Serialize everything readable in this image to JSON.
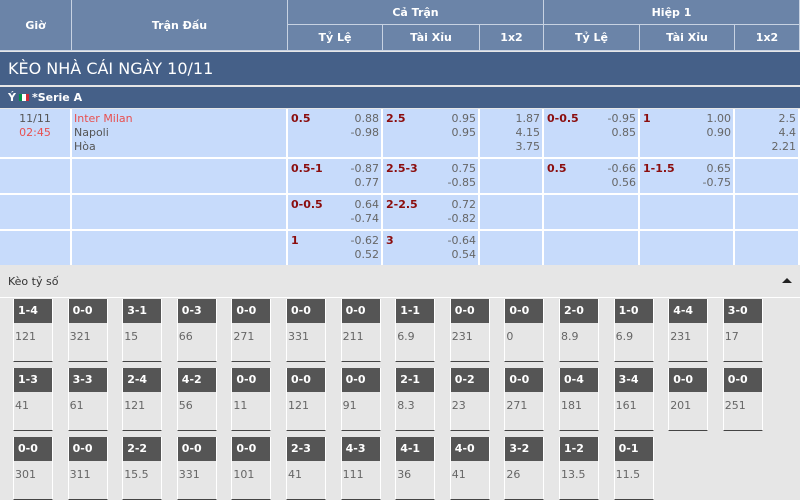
{
  "header": {
    "time": "Giờ",
    "match": "Trận Đấu",
    "full_match": "Cả Trận",
    "first_half": "Hiệp 1",
    "handicap": "Tỷ Lệ",
    "over_under": "Tài Xỉu",
    "one_x_two": "1x2"
  },
  "title": "KÈO NHÀ CÁI NGÀY 10/11",
  "league": {
    "country": "Ý",
    "name": "*Serie A",
    "flag_colors": [
      "#009246",
      "#ffffff",
      "#ce2b37"
    ]
  },
  "match": {
    "date": "11/11",
    "time": "02:45",
    "home": "Inter Milan",
    "away": "Napoli",
    "draw": "Hòa"
  },
  "rows": [
    {
      "ft_hdp": {
        "line": "0.5",
        "o1": "0.88",
        "o2": "-0.98"
      },
      "ft_ou": {
        "line": "2.5",
        "o1": "0.95",
        "o2": "0.95"
      },
      "ft_1x2": [
        "1.87",
        "4.15",
        "3.75"
      ],
      "h1_hdp": {
        "line": "0-0.5",
        "o1": "-0.95",
        "o2": "0.85"
      },
      "h1_ou": {
        "line": "1",
        "o1": "1.00",
        "o2": "0.90"
      },
      "h1_1x2": [
        "2.5",
        "4.4",
        "2.21"
      ]
    },
    {
      "ft_hdp": {
        "line": "0.5-1",
        "o1": "-0.87",
        "o2": "0.77"
      },
      "ft_ou": {
        "line": "2.5-3",
        "o1": "0.75",
        "o2": "-0.85"
      },
      "h1_hdp": {
        "line": "0.5",
        "o1": "-0.66",
        "o2": "0.56"
      },
      "h1_ou": {
        "line": "1-1.5",
        "o1": "0.65",
        "o2": "-0.75"
      }
    },
    {
      "ft_hdp": {
        "line": "0-0.5",
        "o1": "0.64",
        "o2": "-0.74"
      },
      "ft_ou": {
        "line": "2-2.5",
        "o1": "0.72",
        "o2": "-0.82"
      }
    },
    {
      "ft_hdp": {
        "line": "1",
        "o1": "-0.62",
        "o2": "0.52"
      },
      "ft_ou": {
        "line": "3",
        "o1": "-0.64",
        "o2": "0.54"
      }
    }
  ],
  "correct_score": {
    "label": "Kèo tỷ số",
    "items": [
      {
        "s": "1-4",
        "p": "121"
      },
      {
        "s": "0-0",
        "p": "321"
      },
      {
        "s": "3-1",
        "p": "15"
      },
      {
        "s": "0-3",
        "p": "66"
      },
      {
        "s": "0-0",
        "p": "271"
      },
      {
        "s": "0-0",
        "p": "331"
      },
      {
        "s": "0-0",
        "p": "211"
      },
      {
        "s": "1-1",
        "p": "6.9"
      },
      {
        "s": "0-0",
        "p": "231"
      },
      {
        "s": "0-0",
        "p": "0"
      },
      {
        "s": "2-0",
        "p": "8.9"
      },
      {
        "s": "1-0",
        "p": "6.9"
      },
      {
        "s": "4-4",
        "p": "231"
      },
      {
        "s": "3-0",
        "p": "17"
      },
      {
        "s": "1-3",
        "p": "41"
      },
      {
        "s": "3-3",
        "p": "61"
      },
      {
        "s": "2-4",
        "p": "121"
      },
      {
        "s": "4-2",
        "p": "56"
      },
      {
        "s": "0-0",
        "p": "11"
      },
      {
        "s": "0-0",
        "p": "121"
      },
      {
        "s": "0-0",
        "p": "91"
      },
      {
        "s": "2-1",
        "p": "8.3"
      },
      {
        "s": "0-2",
        "p": "23"
      },
      {
        "s": "0-0",
        "p": "271"
      },
      {
        "s": "0-4",
        "p": "181"
      },
      {
        "s": "3-4",
        "p": "161"
      },
      {
        "s": "0-0",
        "p": "201"
      },
      {
        "s": "0-0",
        "p": "251"
      },
      {
        "s": "0-0",
        "p": "301"
      },
      {
        "s": "0-0",
        "p": "311"
      },
      {
        "s": "2-2",
        "p": "15.5"
      },
      {
        "s": "0-0",
        "p": "331"
      },
      {
        "s": "0-0",
        "p": "101"
      },
      {
        "s": "2-3",
        "p": "41"
      },
      {
        "s": "4-3",
        "p": "111"
      },
      {
        "s": "4-1",
        "p": "36"
      },
      {
        "s": "4-0",
        "p": "41"
      },
      {
        "s": "3-2",
        "p": "26"
      },
      {
        "s": "1-2",
        "p": "13.5"
      },
      {
        "s": "0-1",
        "p": "11.5"
      }
    ]
  }
}
